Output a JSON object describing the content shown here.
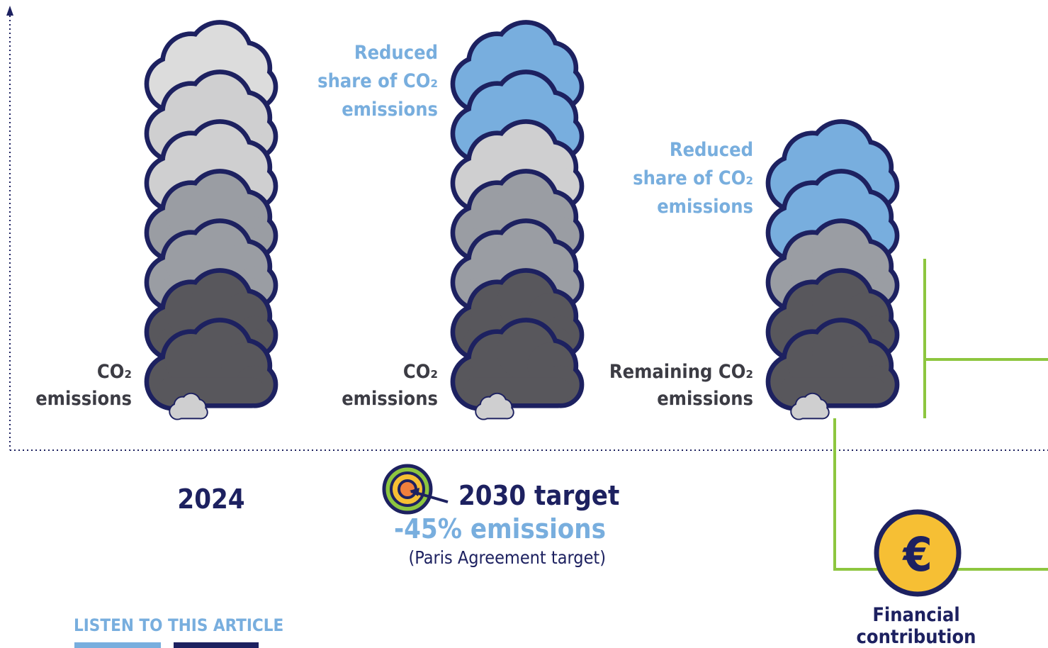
{
  "columns": [
    {
      "label": [
        "CO₂",
        "emissions"
      ],
      "year": "2024"
    },
    {
      "top_label": [
        "Reduced",
        "share of CO₂",
        "emissions"
      ],
      "label": [
        "CO₂",
        "emissions"
      ]
    },
    {
      "top_label": [
        "Reduced",
        "share of CO₂",
        "emissions"
      ],
      "label": [
        "Remaining CO₂",
        "emissions"
      ]
    }
  ],
  "target": {
    "title": "2030 target",
    "subtitle": "-45% emissions",
    "note": "(Paris Agreement target)"
  },
  "financial": {
    "symbol": "€",
    "label": [
      "Financial",
      "contribution"
    ]
  },
  "listen": "LISTEN TO THIS ARTICLE"
}
